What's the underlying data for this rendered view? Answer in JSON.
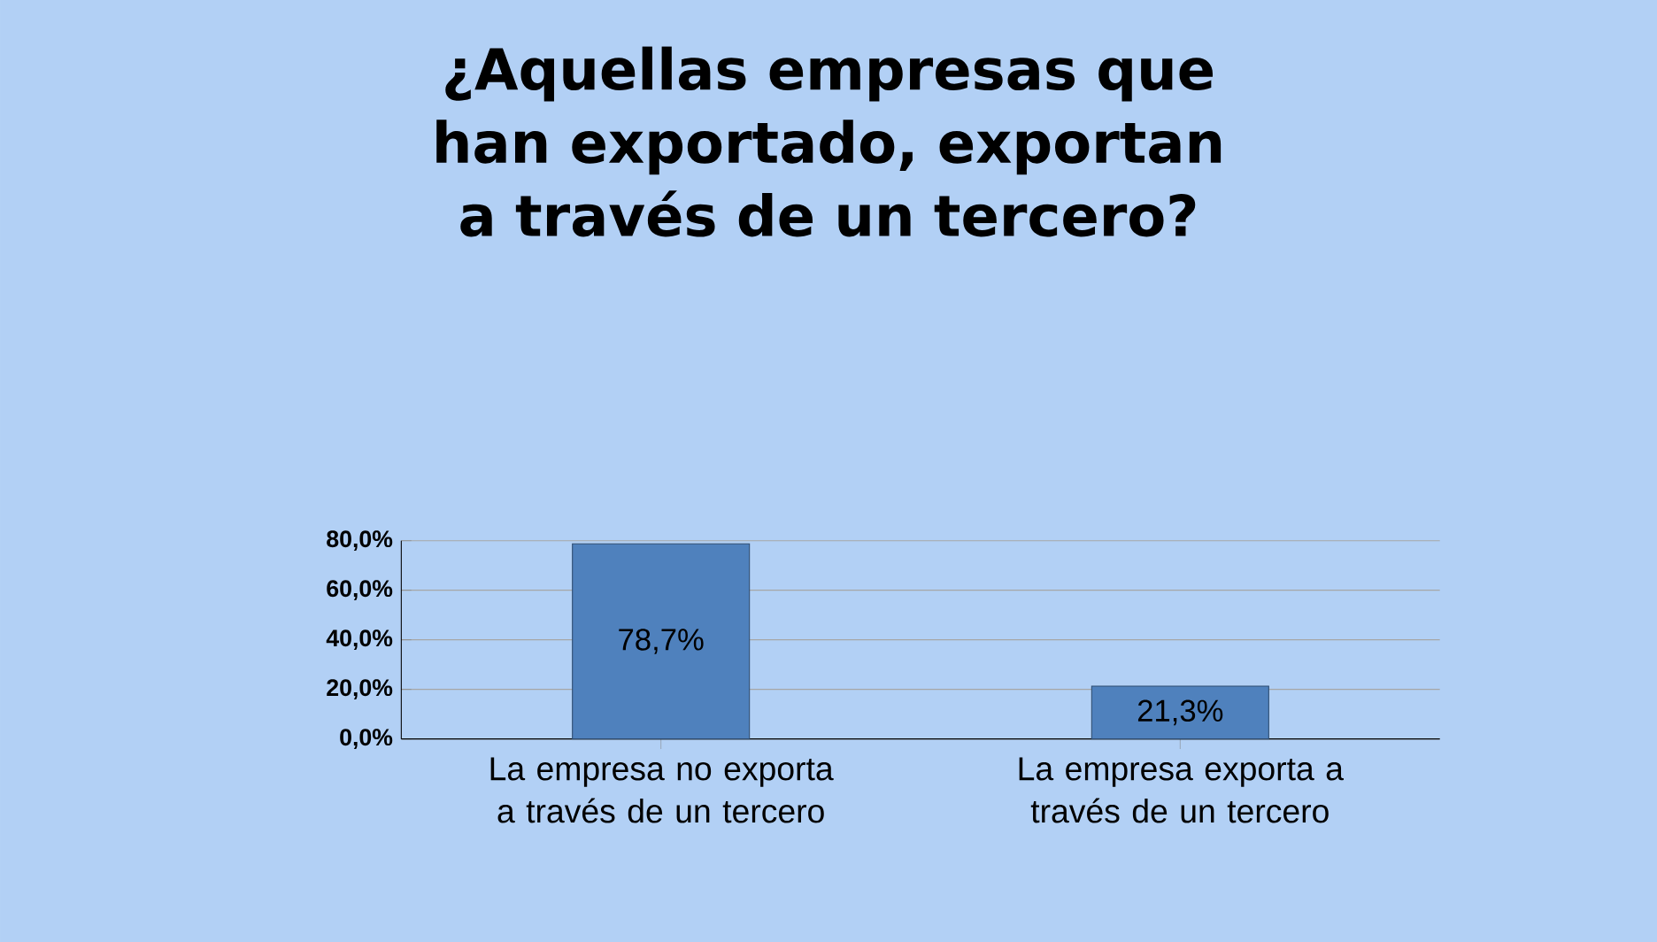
{
  "chart_data": {
    "type": "bar",
    "title": "¿Aquellas empresas que han exportado, exportan  a través de un tercero?",
    "categories": [
      "La empresa no exporta a través de un tercero",
      "La empresa exporta a través de un tercero"
    ],
    "values": [
      78.7,
      21.3
    ],
    "color": "#4f81bd",
    "value_labels": [
      "78,7%",
      "21,3%"
    ],
    "ylim": [
      0,
      80
    ],
    "yticks": [
      {
        "value": 0,
        "label": "0,0%"
      },
      {
        "value": 20,
        "label": "20,0%"
      },
      {
        "value": 40,
        "label": "40,0%"
      },
      {
        "value": 60,
        "label": "60,0%"
      },
      {
        "value": 80,
        "label": "80,0%"
      }
    ],
    "grid": "y"
  }
}
